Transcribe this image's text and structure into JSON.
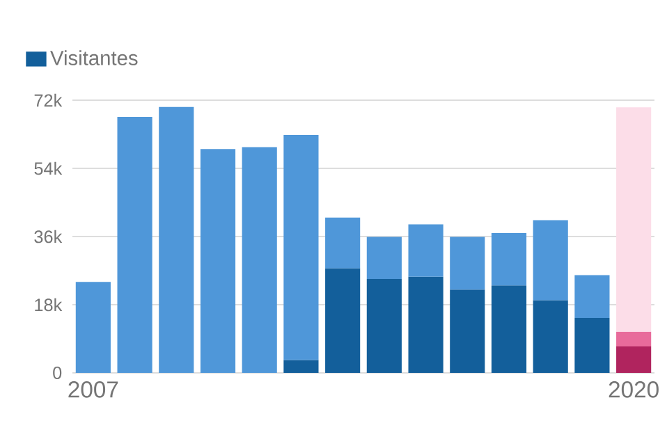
{
  "chart_data": {
    "type": "bar",
    "stacked": true,
    "categories": [
      "2007",
      null,
      null,
      null,
      null,
      null,
      null,
      null,
      null,
      null,
      null,
      null,
      null,
      "2020"
    ],
    "series": [
      {
        "name": "Visitantes",
        "color": "#135f9b",
        "colors": [
          "#135f9b",
          "#135f9b",
          "#135f9b",
          "#135f9b",
          "#135f9b",
          "#135f9b",
          "#135f9b",
          "#135f9b",
          "#135f9b",
          "#135f9b",
          "#135f9b",
          "#135f9b",
          "#135f9b",
          "#b0245e"
        ],
        "values": [
          0,
          0,
          0,
          0,
          0,
          3400,
          27600,
          24800,
          25400,
          22000,
          23100,
          19200,
          14500,
          7000
        ]
      },
      {
        "color": "#4f97d9",
        "colors": [
          "#4f97d9",
          "#4f97d9",
          "#4f97d9",
          "#4f97d9",
          "#4f97d9",
          "#4f97d9",
          "#4f97d9",
          "#4f97d9",
          "#4f97d9",
          "#4f97d9",
          "#4f97d9",
          "#4f97d9",
          "#4f97d9",
          "#e86b9b"
        ],
        "values": [
          24000,
          67600,
          70200,
          59100,
          59600,
          59400,
          13400,
          11100,
          13800,
          13900,
          13800,
          21100,
          11300,
          3900
        ]
      },
      {
        "color": "#fcdde8",
        "values": [
          null,
          null,
          null,
          null,
          null,
          null,
          null,
          null,
          null,
          null,
          null,
          null,
          null,
          59200
        ]
      }
    ],
    "ylim": [
      0,
      72000
    ],
    "yticks": [
      {
        "value": 0,
        "label": "0"
      },
      {
        "value": 18000,
        "label": "18k"
      },
      {
        "value": 36000,
        "label": "36k"
      },
      {
        "value": 54000,
        "label": "54k"
      },
      {
        "value": 72000,
        "label": "72k"
      }
    ],
    "grid": "y",
    "legend": "top left"
  }
}
